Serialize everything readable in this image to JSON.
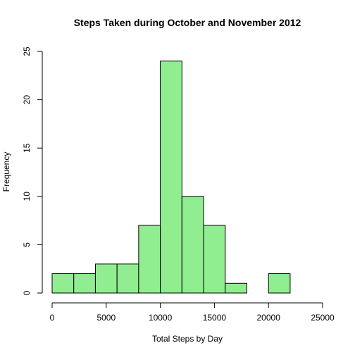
{
  "chart_data": {
    "type": "bar",
    "title": "Steps Taken during October and November 2012",
    "xlabel": "Total Steps by Day",
    "ylabel": "Frequency",
    "bins": [
      {
        "x0": 0,
        "x1": 2000,
        "count": 2
      },
      {
        "x0": 2000,
        "x1": 4000,
        "count": 2
      },
      {
        "x0": 4000,
        "x1": 6000,
        "count": 3
      },
      {
        "x0": 6000,
        "x1": 8000,
        "count": 3
      },
      {
        "x0": 8000,
        "x1": 10000,
        "count": 7
      },
      {
        "x0": 10000,
        "x1": 12000,
        "count": 24
      },
      {
        "x0": 12000,
        "x1": 14000,
        "count": 10
      },
      {
        "x0": 14000,
        "x1": 16000,
        "count": 7
      },
      {
        "x0": 16000,
        "x1": 18000,
        "count": 1
      },
      {
        "x0": 18000,
        "x1": 20000,
        "count": 0
      },
      {
        "x0": 20000,
        "x1": 22000,
        "count": 2
      }
    ],
    "xlim": [
      0,
      25000
    ],
    "ylim": [
      0,
      25
    ],
    "x_ticks": [
      0,
      5000,
      10000,
      15000,
      20000,
      25000
    ],
    "y_ticks": [
      0,
      5,
      10,
      15,
      20,
      25
    ],
    "grid": false,
    "legend": "none",
    "bar_color": "#90ee90",
    "bar_edge_color": "#000000"
  }
}
